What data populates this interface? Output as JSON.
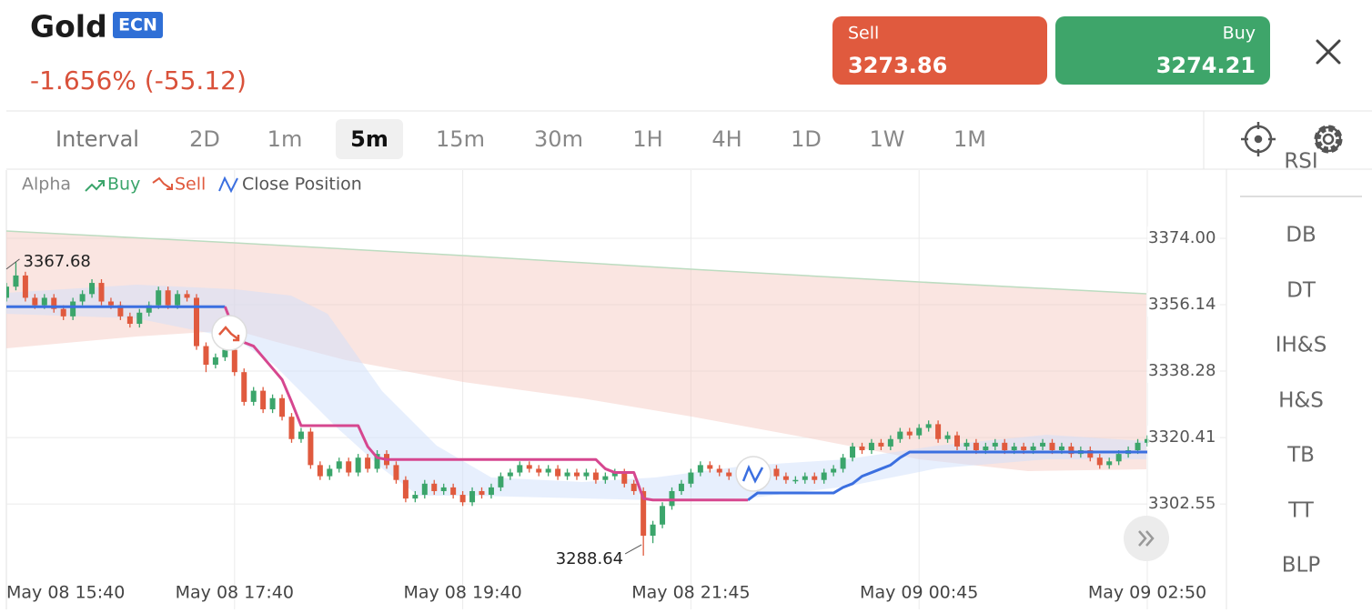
{
  "header": {
    "symbol": "Gold",
    "badge": "ECN",
    "change": "-1.656% (-55.12)"
  },
  "sell": {
    "label": "Sell",
    "price": "3273.86"
  },
  "buy": {
    "label": "Buy",
    "price": "3274.21"
  },
  "intervals": {
    "label": "Interval",
    "options": [
      "2D",
      "1m",
      "5m",
      "15m",
      "30m",
      "1H",
      "4H",
      "1D",
      "1W",
      "1M"
    ],
    "selected": "5m"
  },
  "patterns": [
    "RSI",
    "DB",
    "DT",
    "IH&S",
    "H&S",
    "TB",
    "TT",
    "BLP"
  ],
  "chart_data": {
    "type": "candlestick",
    "legend": [
      "Alpha",
      "Buy",
      "Sell",
      "Close Position"
    ],
    "up_color": "#3ba56b",
    "down_color": "#e05a3e",
    "grid": true,
    "categories": [
      "May 08 15:40",
      null,
      null,
      null,
      null,
      null,
      null,
      null,
      null,
      null,
      null,
      null,
      null,
      null,
      null,
      null,
      null,
      null,
      null,
      null,
      null,
      null,
      null,
      null,
      "May 08 17:40",
      null,
      null,
      null,
      null,
      null,
      null,
      null,
      null,
      null,
      null,
      null,
      null,
      null,
      null,
      null,
      null,
      null,
      null,
      null,
      null,
      null,
      null,
      null,
      "May 08 19:40",
      null,
      null,
      null,
      null,
      null,
      null,
      null,
      null,
      null,
      null,
      null,
      null,
      null,
      null,
      null,
      null,
      null,
      null,
      null,
      null,
      null,
      null,
      null,
      "May 08 21:45",
      null,
      null,
      null,
      null,
      null,
      null,
      null,
      null,
      null,
      null,
      null,
      null,
      null,
      null,
      null,
      null,
      null,
      null,
      null,
      null,
      null,
      null,
      null,
      "May 09 00:45",
      null,
      null,
      null,
      null,
      null,
      null,
      null,
      null,
      null,
      null,
      null,
      null,
      null,
      null,
      null,
      null,
      null,
      null,
      null,
      null,
      null,
      null,
      null,
      "May 09 02:50"
    ],
    "open": [
      3358,
      3361,
      3364,
      3358,
      3356,
      3358,
      3355,
      3353,
      3357,
      3359,
      3362,
      3357,
      3356,
      3353,
      3351,
      3354,
      3356,
      3360,
      3356,
      3359,
      3358,
      3345,
      3340,
      3342,
      3344,
      3338,
      3330,
      3333,
      3328,
      3331,
      3326,
      3320,
      3322,
      3313,
      3310,
      3312,
      3314,
      3311,
      3315,
      3312,
      3316,
      3313,
      3309,
      3304,
      3305,
      3308,
      3306,
      3307,
      3305,
      3303,
      3306,
      3305,
      3307,
      3310,
      3311,
      3313,
      3312,
      3311,
      3312,
      3310,
      3311,
      3310,
      3311,
      3309,
      3310,
      3311,
      3308,
      3306,
      3294,
      3297,
      3302,
      3306,
      3308,
      3311,
      3313,
      3312,
      3311,
      3310,
      3311,
      3310,
      3311,
      3312,
      3310,
      3309,
      3309,
      3310,
      3309,
      3311,
      3312,
      3315,
      3318,
      3317,
      3319,
      3318,
      3320,
      3322,
      3321,
      3323,
      3324,
      3320,
      3321,
      3318,
      3319,
      3317,
      3318,
      3319,
      3317,
      3318,
      3317,
      3318,
      3319,
      3317,
      3318,
      3316,
      3317,
      3315,
      3313,
      3314,
      3316,
      3317,
      3319
    ],
    "high": [
      3362,
      3367.68,
      3365,
      3359,
      3359,
      3359,
      3356,
      3358,
      3360,
      3363,
      3363,
      3358,
      3357,
      3354,
      3355,
      3357,
      3361,
      3361,
      3360,
      3360,
      3359,
      3346,
      3343,
      3345,
      3345,
      3339,
      3334,
      3334,
      3332,
      3332,
      3327,
      3323,
      3323,
      3314,
      3313,
      3315,
      3315,
      3316,
      3316,
      3317,
      3317,
      3314,
      3310,
      3306,
      3309,
      3309,
      3308,
      3308,
      3306,
      3307,
      3307,
      3308,
      3311,
      3312,
      3314,
      3314,
      3313,
      3313,
      3313,
      3312,
      3312,
      3312,
      3312,
      3311,
      3312,
      3312,
      3309,
      3307,
      3298,
      3303,
      3307,
      3309,
      3312,
      3314,
      3314,
      3313,
      3312,
      3312,
      3312,
      3312,
      3313,
      3313,
      3311,
      3310,
      3311,
      3311,
      3312,
      3313,
      3316,
      3319,
      3319,
      3320,
      3320,
      3321,
      3323,
      3323,
      3324,
      3325,
      3325,
      3322,
      3322,
      3320,
      3320,
      3319,
      3320,
      3320,
      3319,
      3319,
      3319,
      3320,
      3320,
      3319,
      3319,
      3318,
      3318,
      3316,
      3315,
      3317,
      3318,
      3320,
      3321
    ],
    "low": [
      3357,
      3360,
      3357,
      3355,
      3355,
      3354,
      3352,
      3352,
      3356,
      3358,
      3356,
      3355,
      3352,
      3350,
      3350,
      3353,
      3355,
      3355,
      3355,
      3357,
      3344,
      3338,
      3339,
      3341,
      3337,
      3329,
      3329,
      3327,
      3327,
      3325,
      3319,
      3319,
      3312,
      3309,
      3309,
      3311,
      3310,
      3310,
      3311,
      3311,
      3312,
      3308,
      3303,
      3303,
      3304,
      3305,
      3305,
      3304,
      3302,
      3302,
      3304,
      3304,
      3306,
      3309,
      3310,
      3311,
      3310,
      3310,
      3309,
      3309,
      3309,
      3309,
      3308,
      3308,
      3309,
      3307,
      3305,
      3288.64,
      3292,
      3296,
      3301,
      3305,
      3307,
      3310,
      3311,
      3310,
      3309,
      3309,
      3309,
      3309,
      3310,
      3309,
      3308,
      3308,
      3308,
      3308,
      3308,
      3310,
      3311,
      3314,
      3316,
      3316,
      3317,
      3317,
      3319,
      3320,
      3320,
      3322,
      3319,
      3319,
      3317,
      3317,
      3316,
      3316,
      3317,
      3316,
      3316,
      3316,
      3316,
      3317,
      3316,
      3316,
      3315,
      3315,
      3314,
      3312,
      3312,
      3313,
      3315,
      3316,
      3318
    ],
    "close": [
      3361,
      3364,
      3358,
      3356,
      3358,
      3355,
      3353,
      3357,
      3359,
      3362,
      3357,
      3356,
      3353,
      3351,
      3354,
      3356,
      3360,
      3356,
      3359,
      3358,
      3345,
      3340,
      3342,
      3344,
      3338,
      3330,
      3333,
      3328,
      3331,
      3326,
      3320,
      3322,
      3313,
      3310,
      3312,
      3314,
      3311,
      3315,
      3312,
      3316,
      3313,
      3309,
      3304,
      3305,
      3308,
      3306,
      3307,
      3305,
      3303,
      3306,
      3305,
      3307,
      3310,
      3311,
      3313,
      3312,
      3311,
      3312,
      3310,
      3311,
      3310,
      3311,
      3309,
      3310,
      3311,
      3308,
      3306,
      3294,
      3297,
      3302,
      3306,
      3308,
      3311,
      3313,
      3312,
      3311,
      3310,
      3311,
      3310,
      3311,
      3312,
      3310,
      3309,
      3309,
      3310,
      3309,
      3311,
      3312,
      3315,
      3318,
      3317,
      3319,
      3318,
      3320,
      3322,
      3321,
      3323,
      3324,
      3320,
      3321,
      3318,
      3319,
      3317,
      3318,
      3319,
      3317,
      3318,
      3317,
      3318,
      3319,
      3317,
      3318,
      3316,
      3317,
      3315,
      3313,
      3314,
      3316,
      3317,
      3319,
      3320
    ],
    "lines": [
      {
        "color": "#3b6fe0",
        "values": [
          3355.6,
          3355.6,
          3355.6,
          3355.6,
          3355.6,
          3355.6,
          3355.6,
          3355.6,
          3355.6,
          3355.6,
          3355.6,
          3355.6,
          3355.6,
          3355.6,
          3355.6,
          3355.6,
          3355.6,
          3355.6,
          3355.6,
          3355.6,
          3355.6,
          3355.6,
          3355.6,
          3355.6,
          null,
          null,
          null,
          null,
          null,
          null,
          null,
          null,
          null,
          null,
          null,
          null,
          null,
          null,
          null,
          null,
          null,
          null,
          null,
          null,
          null,
          null,
          null,
          null,
          null,
          null,
          null,
          null,
          null,
          null,
          null,
          null,
          null,
          null,
          null,
          null,
          null,
          null,
          null,
          null,
          null,
          null,
          null,
          null,
          null,
          null,
          null,
          null,
          null,
          null,
          null,
          null,
          null,
          null,
          3303.6,
          3305.5,
          3305.5,
          3305.5,
          3305.5,
          3305.5,
          3305.5,
          3305.5,
          3305.5,
          3305.5,
          3307,
          3308,
          3310,
          3311,
          3312,
          3313,
          3315,
          3316.5,
          3316.5,
          3316.5,
          3316.5,
          3316.5,
          3316.5,
          3316.5,
          3316.5,
          3316.5,
          3316.5,
          3316.5,
          3316.5,
          3316.5,
          3316.5,
          3316.5,
          3316.5,
          3316.5,
          3316.5,
          3316.5,
          3316.5,
          3316.5,
          3316.5,
          3316.5,
          3316.5,
          3316.5,
          3316.5
        ]
      },
      {
        "color": "#d6478f",
        "values": [
          null,
          null,
          null,
          null,
          null,
          null,
          null,
          null,
          null,
          null,
          null,
          null,
          null,
          null,
          null,
          null,
          null,
          null,
          null,
          null,
          null,
          null,
          null,
          3355.6,
          3349,
          3346,
          3345,
          3342,
          3339,
          3336,
          3330,
          3323.6,
          3323.6,
          3323.6,
          3323.6,
          3323.6,
          3323.6,
          3323.6,
          3318,
          3315,
          3314.5,
          3314.5,
          3314.5,
          3314.5,
          3314.5,
          3314.5,
          3314.5,
          3314.5,
          3314.5,
          3314.5,
          3314.5,
          3314.5,
          3314.5,
          3314.5,
          3314.5,
          3314.5,
          3314.5,
          3314.5,
          3314.5,
          3314.5,
          3314.5,
          3314.5,
          3314.5,
          3312,
          3311,
          3311,
          3311,
          3304,
          3303.6,
          3303.6,
          3303.6,
          3303.6,
          3303.6,
          3303.6,
          3303.6,
          3303.6,
          3303.6,
          3303.6,
          3303.6,
          null,
          null,
          null,
          null,
          null,
          null,
          null,
          null,
          null,
          null,
          null,
          null,
          null,
          null,
          null,
          null,
          null,
          null,
          null,
          null,
          null,
          null,
          null,
          null,
          null,
          null,
          null,
          null,
          null,
          null,
          null,
          null,
          null,
          null,
          null,
          null,
          null,
          null,
          null,
          null,
          null,
          null
        ]
      }
    ],
    "ylim": [
      3283,
      3392.35
    ],
    "yticks": [
      {
        "value": 3374,
        "label": "3374.00"
      },
      3356.14,
      3338.28,
      3320.41,
      3302.55
    ]
  }
}
